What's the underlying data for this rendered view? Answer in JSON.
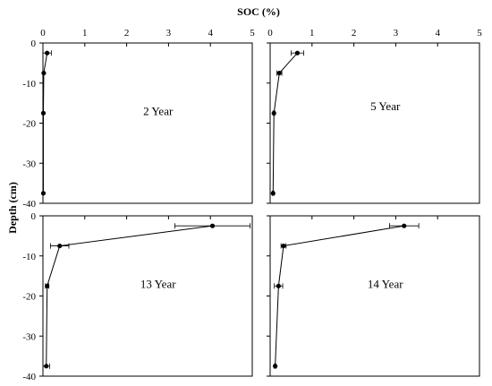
{
  "chart_data": {
    "type": "line",
    "title": "SOC (%)",
    "xlabel": "SOC (%)",
    "ylabel": "Depth (cm)",
    "xlim": [
      0,
      5
    ],
    "ylim": [
      -40,
      0
    ],
    "x_ticks": [
      "0",
      "1",
      "2",
      "3",
      "4",
      "5"
    ],
    "y_ticks": [
      "0",
      "-10",
      "-20",
      "-30",
      "-40"
    ],
    "grid": false,
    "panels": [
      {
        "label": "2 Year",
        "points": [
          {
            "x": 0.1,
            "y": -2.5,
            "err": 0.1
          },
          {
            "x": 0.02,
            "y": -7.5,
            "err": 0.0
          },
          {
            "x": 0.01,
            "y": -17.5,
            "err": 0.0
          },
          {
            "x": 0.01,
            "y": -37.5,
            "err": 0.0
          }
        ]
      },
      {
        "label": "5 Year",
        "points": [
          {
            "x": 0.65,
            "y": -2.5,
            "err": 0.15
          },
          {
            "x": 0.22,
            "y": -7.5,
            "err": 0.06
          },
          {
            "x": 0.09,
            "y": -17.5,
            "err": 0.02
          },
          {
            "x": 0.07,
            "y": -37.5,
            "err": 0.02
          }
        ]
      },
      {
        "label": "13 Year",
        "points": [
          {
            "x": 4.05,
            "y": -2.5,
            "err": 0.9
          },
          {
            "x": 0.4,
            "y": -7.5,
            "err": 0.22
          },
          {
            "x": 0.1,
            "y": -17.5,
            "err": 0.04
          },
          {
            "x": 0.08,
            "y": -37.5,
            "err": 0.08
          }
        ]
      },
      {
        "label": "14 Year",
        "points": [
          {
            "x": 3.2,
            "y": -2.5,
            "err": 0.35
          },
          {
            "x": 0.32,
            "y": -7.5,
            "err": 0.06
          },
          {
            "x": 0.2,
            "y": -17.5,
            "err": 0.1
          },
          {
            "x": 0.12,
            "y": -37.5,
            "err": 0.02
          }
        ]
      }
    ]
  }
}
